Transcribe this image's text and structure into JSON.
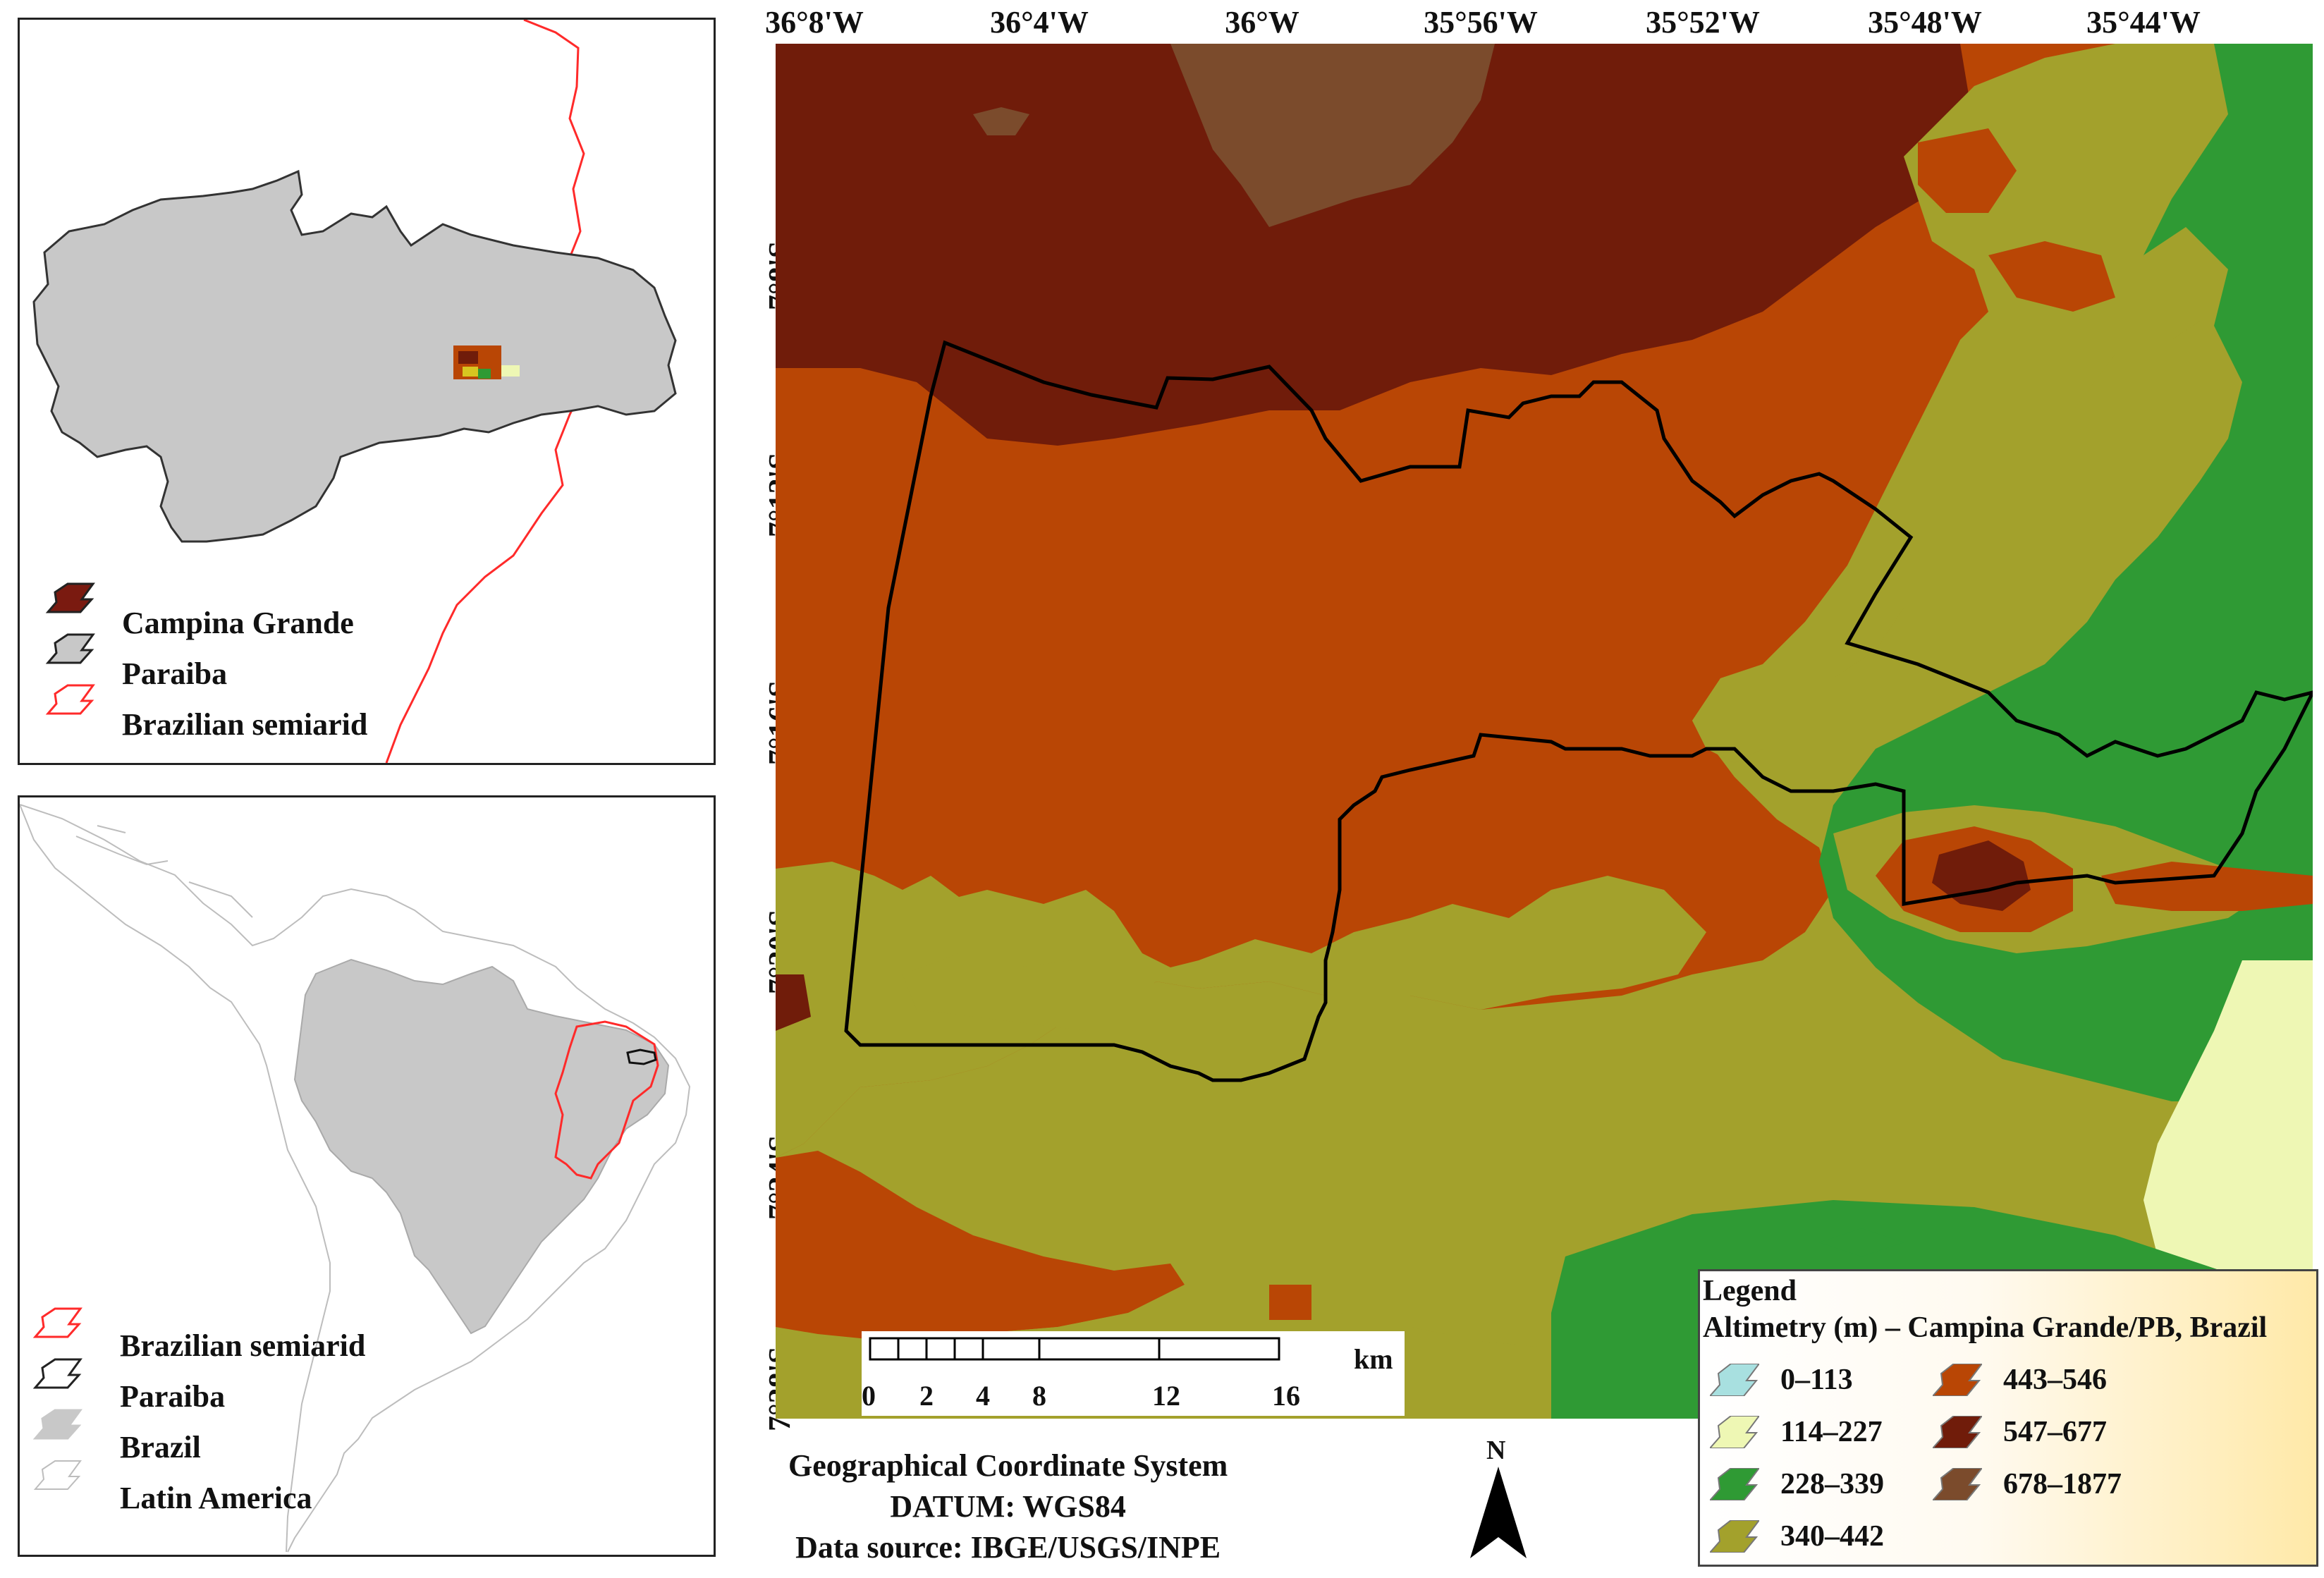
{
  "inset_top": {
    "legend": [
      {
        "label": "Campina Grande",
        "symbol": "campina-grande",
        "color": "#7a1a10"
      },
      {
        "label": "Paraiba",
        "symbol": "paraiba",
        "color": "#c8c8c8"
      },
      {
        "label": "Brazilian semiarid",
        "symbol": "semiarid",
        "color": "#ff2a2a"
      }
    ]
  },
  "inset_bottom": {
    "legend": [
      {
        "label": "Brazilian semiarid",
        "symbol": "semiarid",
        "color": "#ff2a2a"
      },
      {
        "label": "Paraiba",
        "symbol": "paraiba-outline",
        "color": "#222222"
      },
      {
        "label": "Brazil",
        "symbol": "brazil",
        "color": "#c8c8c8"
      },
      {
        "label": "Latin America",
        "symbol": "latin-america",
        "color": "#bdbdbd"
      }
    ]
  },
  "main_map": {
    "longitude_ticks": [
      "36°8'W",
      "36°4'W",
      "36°W",
      "35°56'W",
      "35°52'W",
      "35°48'W",
      "35°44'W"
    ],
    "latitude_ticks": [
      "7°8'S",
      "7°12'S",
      "7°16'S",
      "7°20'S",
      "7°24'S",
      "7°28'S"
    ],
    "scale_bar": {
      "labels": [
        "0",
        "2",
        "4",
        "8",
        "12",
        "16"
      ],
      "unit": "km"
    },
    "credits": {
      "line1": "Geographical Coordinate System",
      "line2": "DATUM: WGS84",
      "line3": "Data source: IBGE/USGS/INPE"
    },
    "north_arrow": {
      "label": "N"
    },
    "legend": {
      "title": "Legend",
      "subtitle": "Altimetry (m) – Campina Grande/PB, Brazil",
      "classes": [
        {
          "label": "0–113",
          "color": "#a8e0e0"
        },
        {
          "label": "114–227",
          "color": "#eef7b4"
        },
        {
          "label": "228–339",
          "color": "#2f9a34"
        },
        {
          "label": "340–442",
          "color": "#a3a12c"
        },
        {
          "label": "443–546",
          "color": "#b94605"
        },
        {
          "label": "547–677",
          "color": "#701c0a"
        },
        {
          "label": "678–1877",
          "color": "#7b4b2c"
        }
      ]
    },
    "colors": {
      "c0": "#a8e0e0",
      "c1": "#eef7b4",
      "c2": "#2f9a34",
      "c3": "#a3a12c",
      "c4": "#b94605",
      "c5": "#701c0a",
      "c6": "#7b4b2c"
    }
  }
}
